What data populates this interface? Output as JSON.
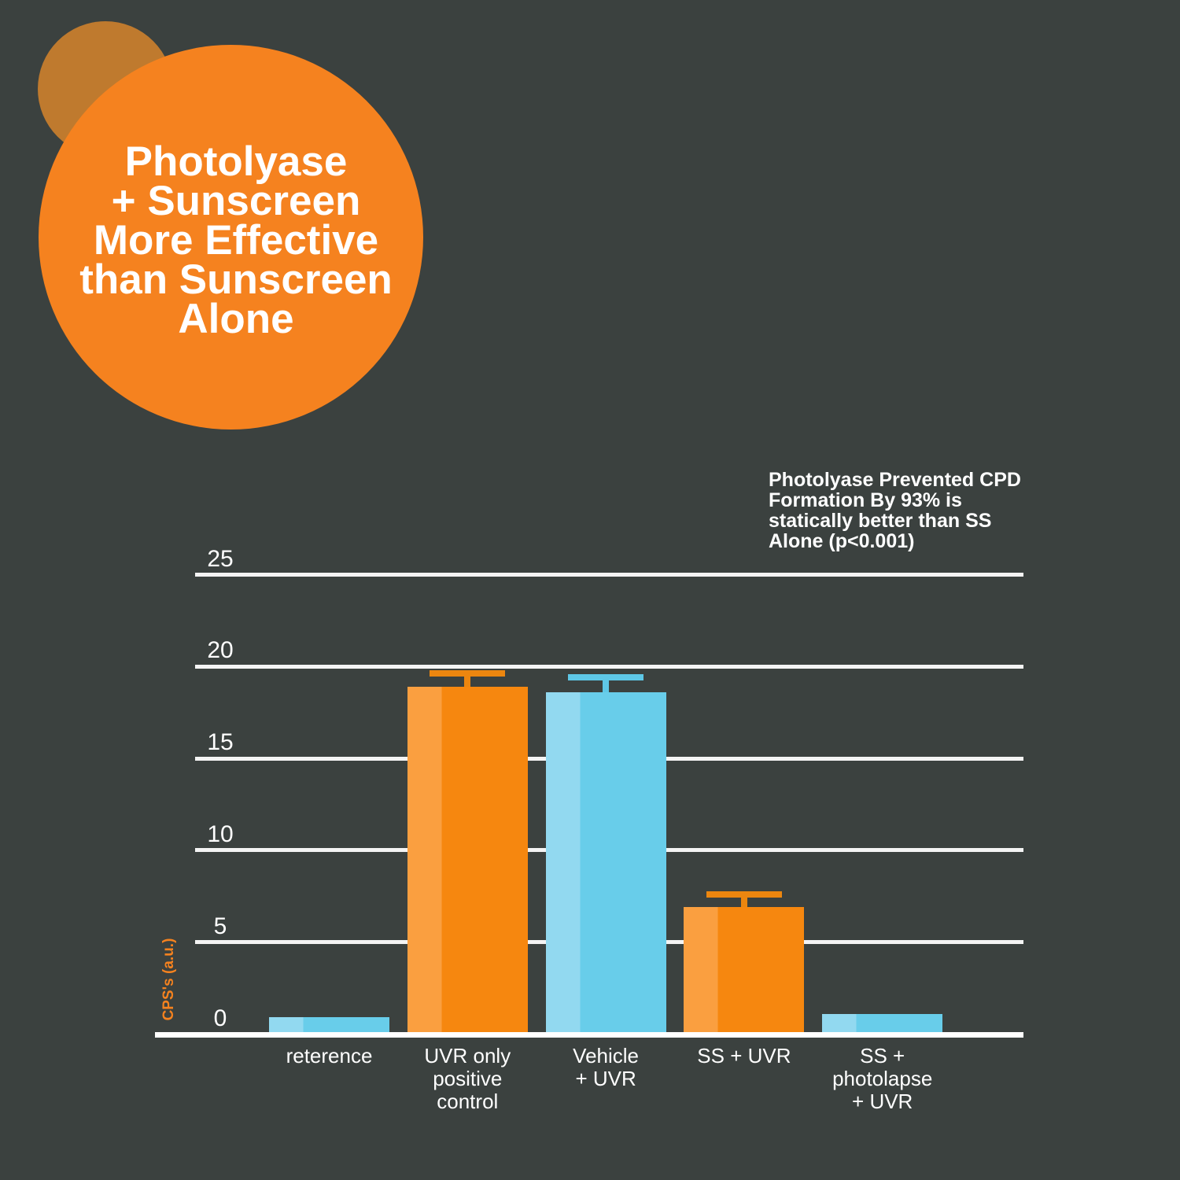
{
  "badge": {
    "title": "Photolyase\n+ Sunscreen\nMore Effective\nthan Sunscreen\nAlone"
  },
  "annotation": {
    "text": "Photolyase Prevented CPD\nFormation By 93% is\nstatically better than SS\nAlone (p<0.001)"
  },
  "chart_data": {
    "type": "bar",
    "categories": [
      "reterence",
      "UVR only\npositive\ncontrol",
      "Vehicle\n+ UVR",
      "SS + UVR",
      "SS +\nphotolapse\n+ UVR"
    ],
    "values": [
      0.8,
      18.8,
      18.5,
      6.8,
      1.0
    ],
    "errors": [
      0,
      0.7,
      0.8,
      0.7,
      0
    ],
    "series_colors": [
      "blue",
      "orange",
      "blue",
      "orange",
      "blue"
    ],
    "ylabel": "CPS's (a.u.)",
    "yticks": [
      0,
      5,
      10,
      15,
      20,
      25
    ],
    "ylim": [
      0,
      25
    ],
    "grid": true
  },
  "colors": {
    "background": "#3b413f",
    "circle_big": "#f5821f",
    "circle_small": "#bf7a2e",
    "bar_orange": "#f6870f",
    "bar_orange_light": "#fa9f40",
    "bar_blue": "#68cdea",
    "bar_blue_light": "#92d9f0",
    "error_orange": "#ec860f",
    "error_blue": "#5ec7e6",
    "grid_line": "#f4f4f4",
    "accent": "#f5821f"
  }
}
